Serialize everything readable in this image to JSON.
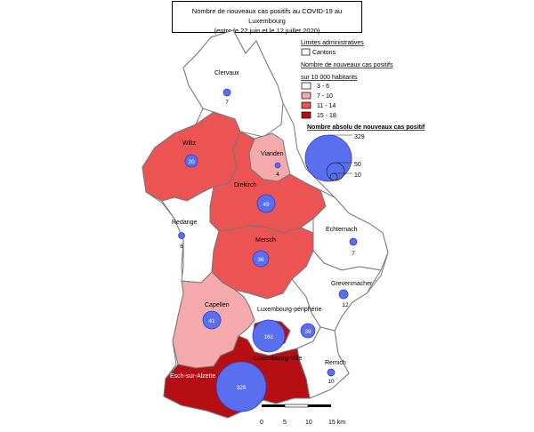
{
  "title": {
    "line1": "Nombre de nouveaux cas positifs au COVID-19 au Luxembourg",
    "line2": "(entre le 22 juin et le 12 juillet 2020)"
  },
  "legend": {
    "admin_heading": "Limites administratives",
    "admin_item": "Cantons",
    "rate_heading_1": "Nombre de nouveaux cas positifs",
    "rate_heading_2": "sur 10 000 habitants",
    "classes": [
      {
        "label": "3 - 6",
        "color": "#ffffff"
      },
      {
        "label": "7 - 10",
        "color": "#f4aaaa"
      },
      {
        "label": "11 - 14",
        "color": "#ec5353"
      },
      {
        "label": "15 - 18",
        "color": "#b50f14"
      }
    ],
    "abs_heading": "Nombre absolu de nouveaux cas positif",
    "circle_values": [
      "329",
      "50",
      "10"
    ]
  },
  "cantons": [
    {
      "name": "Clervaux",
      "cases": "7"
    },
    {
      "name": "Wiltz",
      "cases": "20"
    },
    {
      "name": "Vianden",
      "cases": "4"
    },
    {
      "name": "Diekirch",
      "cases": "49"
    },
    {
      "name": "Redange",
      "cases": "6"
    },
    {
      "name": "Echternach",
      "cases": "7"
    },
    {
      "name": "Mersch",
      "cases": "36"
    },
    {
      "name": "Grevenmacher",
      "cases": "12"
    },
    {
      "name": "Capellen",
      "cases": "41"
    },
    {
      "name": "Luxembourg-périphérie",
      "cases": "39"
    },
    {
      "name": "Luxembourg-Ville",
      "cases": "161"
    },
    {
      "name": "Esch-sur-Alzette",
      "cases": "329"
    },
    {
      "name": "Remich",
      "cases": "10"
    }
  ],
  "scale": {
    "ticks": [
      "0",
      "5",
      "10",
      "15 km"
    ]
  },
  "colors": {
    "circle_fill": "#5a6ef0",
    "circle_stroke": "#2f3fc8"
  }
}
